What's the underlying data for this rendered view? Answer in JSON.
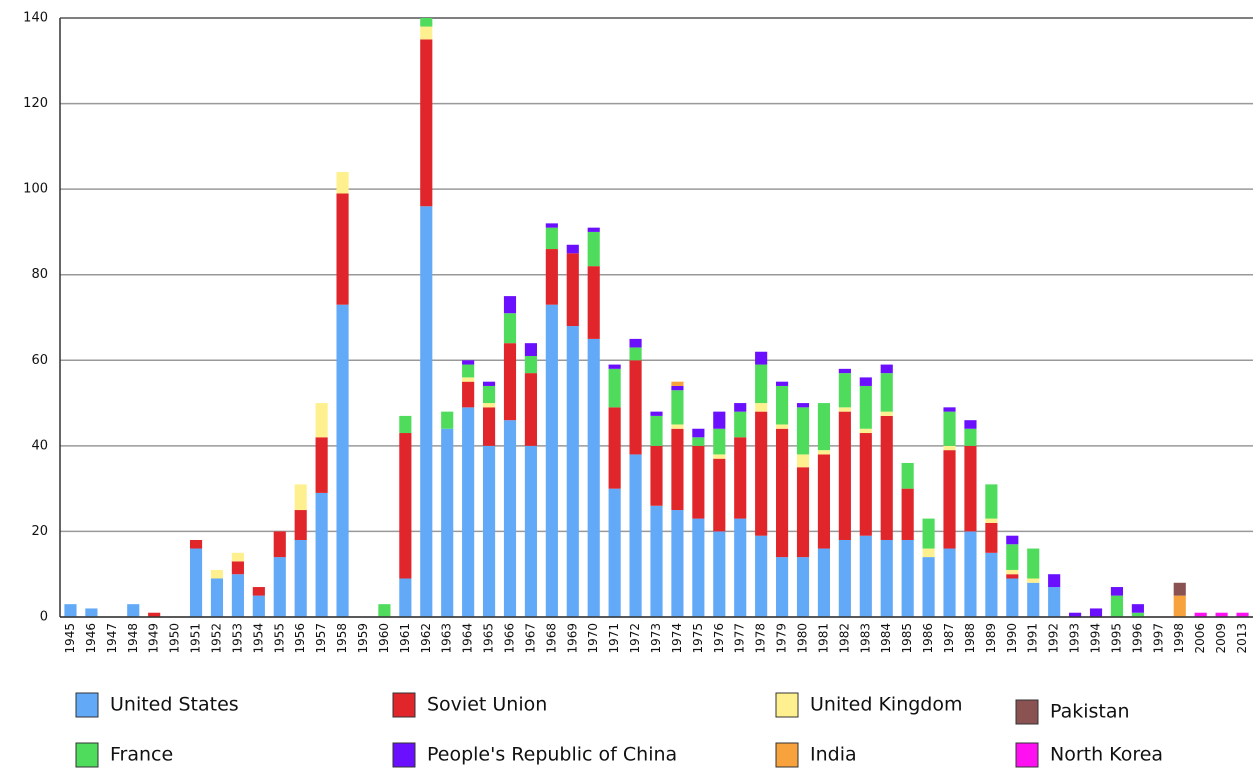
{
  "chart_data": {
    "type": "bar",
    "stacked": true,
    "categories": [
      "1945",
      "1946",
      "1947",
      "1948",
      "1949",
      "1950",
      "1951",
      "1952",
      "1953",
      "1954",
      "1955",
      "1956",
      "1957",
      "1958",
      "1959",
      "1960",
      "1961",
      "1962",
      "1963",
      "1964",
      "1965",
      "1966",
      "1967",
      "1968",
      "1969",
      "1970",
      "1971",
      "1972",
      "1973",
      "1974",
      "1975",
      "1976",
      "1977",
      "1978",
      "1979",
      "1980",
      "1981",
      "1982",
      "1983",
      "1984",
      "1985",
      "1986",
      "1987",
      "1988",
      "1989",
      "1990",
      "1991",
      "1992",
      "1993",
      "1994",
      "1995",
      "1996",
      "1997",
      "1998",
      "2006",
      "2009",
      "2013"
    ],
    "series": [
      {
        "name": "United States",
        "color": "#62a9f7",
        "values": [
          3,
          2,
          0,
          3,
          0,
          0,
          16,
          9,
          10,
          5,
          14,
          18,
          29,
          73,
          0,
          0,
          9,
          96,
          44,
          49,
          40,
          46,
          40,
          73,
          68,
          65,
          30,
          38,
          26,
          25,
          23,
          20,
          23,
          19,
          14,
          14,
          16,
          18,
          19,
          18,
          18,
          14,
          16,
          20,
          15,
          9,
          8,
          7,
          0,
          0,
          0,
          0,
          0,
          0,
          0,
          0,
          0
        ]
      },
      {
        "name": "Soviet Union",
        "color": "#e1262b",
        "values": [
          0,
          0,
          0,
          0,
          1,
          0,
          2,
          0,
          3,
          2,
          6,
          7,
          13,
          26,
          0,
          0,
          34,
          39,
          0,
          6,
          9,
          18,
          17,
          13,
          17,
          17,
          19,
          22,
          14,
          19,
          17,
          17,
          19,
          29,
          30,
          21,
          22,
          30,
          24,
          29,
          12,
          0,
          23,
          20,
          7,
          1,
          0,
          0,
          0,
          0,
          0,
          0,
          0,
          0,
          0,
          0,
          0
        ]
      },
      {
        "name": "United Kingdom",
        "color": "#fff08f",
        "values": [
          0,
          0,
          0,
          0,
          0,
          0,
          0,
          2,
          2,
          0,
          0,
          6,
          8,
          5,
          0,
          0,
          0,
          3,
          0,
          1,
          1,
          0,
          0,
          0,
          0,
          0,
          0,
          0,
          0,
          1,
          0,
          1,
          0,
          2,
          1,
          3,
          1,
          1,
          1,
          1,
          0,
          2,
          1,
          0,
          1,
          1,
          1,
          0,
          0,
          0,
          0,
          0,
          0,
          0,
          0,
          0,
          0
        ]
      },
      {
        "name": "France",
        "color": "#4fdc5c",
        "values": [
          0,
          0,
          0,
          0,
          0,
          0,
          0,
          0,
          0,
          0,
          0,
          0,
          0,
          0,
          0,
          3,
          4,
          2,
          4,
          3,
          4,
          7,
          4,
          5,
          0,
          8,
          9,
          3,
          7,
          8,
          2,
          6,
          6,
          9,
          9,
          11,
          11,
          8,
          10,
          9,
          6,
          7,
          8,
          4,
          8,
          6,
          7,
          0,
          0,
          0,
          5,
          1,
          0,
          0,
          0,
          0,
          0
        ]
      },
      {
        "name": "People's Republic of China",
        "color": "#6a10ff",
        "values": [
          0,
          0,
          0,
          0,
          0,
          0,
          0,
          0,
          0,
          0,
          0,
          0,
          0,
          0,
          0,
          0,
          0,
          0,
          0,
          1,
          1,
          4,
          3,
          1,
          2,
          1,
          1,
          2,
          1,
          1,
          2,
          4,
          2,
          3,
          1,
          1,
          0,
          1,
          2,
          2,
          0,
          0,
          1,
          2,
          0,
          2,
          0,
          3,
          1,
          2,
          2,
          2,
          0,
          0,
          0,
          0,
          0
        ]
      },
      {
        "name": "India",
        "color": "#f7a23d",
        "values": [
          0,
          0,
          0,
          0,
          0,
          0,
          0,
          0,
          0,
          0,
          0,
          0,
          0,
          0,
          0,
          0,
          0,
          0,
          0,
          0,
          0,
          0,
          0,
          0,
          0,
          0,
          0,
          0,
          0,
          1,
          0,
          0,
          0,
          0,
          0,
          0,
          0,
          0,
          0,
          0,
          0,
          0,
          0,
          0,
          0,
          0,
          0,
          0,
          0,
          0,
          0,
          0,
          0,
          5,
          0,
          0,
          0
        ]
      },
      {
        "name": "Pakistan",
        "color": "#8a5351",
        "values": [
          0,
          0,
          0,
          0,
          0,
          0,
          0,
          0,
          0,
          0,
          0,
          0,
          0,
          0,
          0,
          0,
          0,
          0,
          0,
          0,
          0,
          0,
          0,
          0,
          0,
          0,
          0,
          0,
          0,
          0,
          0,
          0,
          0,
          0,
          0,
          0,
          0,
          0,
          0,
          0,
          0,
          0,
          0,
          0,
          0,
          0,
          0,
          0,
          0,
          0,
          0,
          0,
          0,
          3,
          0,
          0,
          0
        ]
      },
      {
        "name": "North Korea",
        "color": "#ff10f0",
        "values": [
          0,
          0,
          0,
          0,
          0,
          0,
          0,
          0,
          0,
          0,
          0,
          0,
          0,
          0,
          0,
          0,
          0,
          0,
          0,
          0,
          0,
          0,
          0,
          0,
          0,
          0,
          0,
          0,
          0,
          0,
          0,
          0,
          0,
          0,
          0,
          0,
          0,
          0,
          0,
          0,
          0,
          0,
          0,
          0,
          0,
          0,
          0,
          0,
          0,
          0,
          0,
          0,
          0,
          0,
          1,
          1,
          1
        ]
      }
    ],
    "ylim": [
      0,
      140
    ],
    "yticks": [
      0,
      20,
      40,
      60,
      80,
      100,
      120,
      140
    ],
    "grid": true,
    "legend": "bottom"
  }
}
